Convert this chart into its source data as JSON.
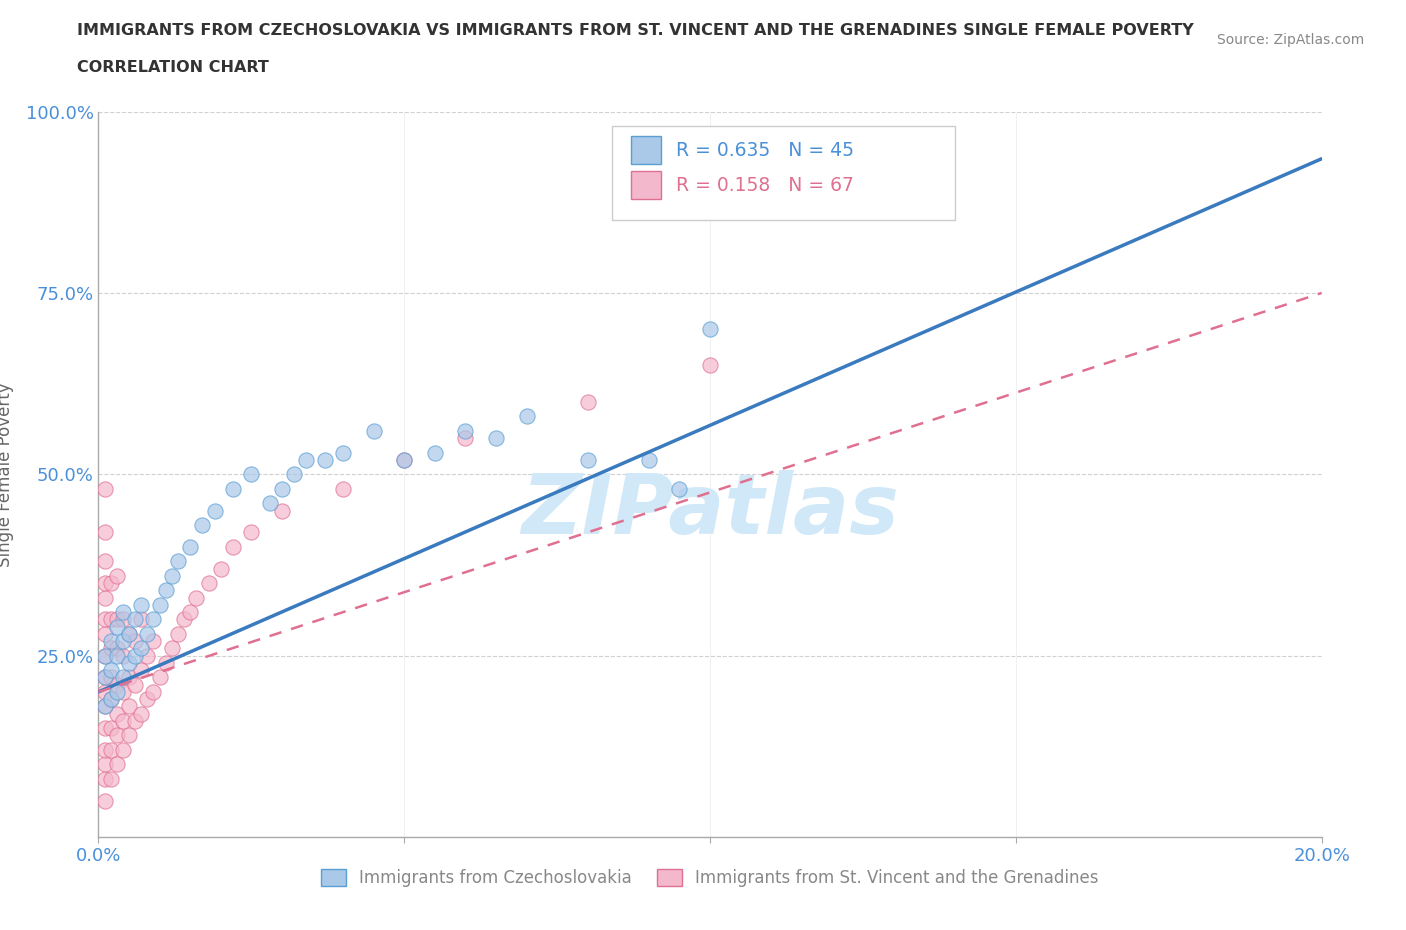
{
  "title_line1": "IMMIGRANTS FROM CZECHOSLOVAKIA VS IMMIGRANTS FROM ST. VINCENT AND THE GRENADINES SINGLE FEMALE POVERTY",
  "title_line2": "CORRELATION CHART",
  "source_text": "Source: ZipAtlas.com",
  "ylabel": "Single Female Poverty",
  "xlim": [
    0.0,
    0.2
  ],
  "ylim": [
    0.0,
    1.0
  ],
  "xticks": [
    0.0,
    0.05,
    0.1,
    0.15,
    0.2
  ],
  "xtick_labels": [
    "0.0%",
    "",
    "",
    "",
    "20.0%"
  ],
  "yticks": [
    0.0,
    0.25,
    0.5,
    0.75,
    1.0
  ],
  "ytick_labels": [
    "",
    "25.0%",
    "50.0%",
    "75.0%",
    "100.0%"
  ],
  "series1_name": "Immigrants from Czechoslovakia",
  "series1_color": "#aac8e8",
  "series1_edge_color": "#5a9fd4",
  "series1_R": 0.635,
  "series1_N": 45,
  "series1_line_color": "#3a7abf",
  "series2_name": "Immigrants from St. Vincent and the Grenadines",
  "series2_color": "#f4b8cc",
  "series2_edge_color": "#e07090",
  "series2_R": 0.158,
  "series2_N": 67,
  "series2_line_color": "#e07090",
  "watermark": "ZIPatlas",
  "watermark_color": "#d0e8f8",
  "background_color": "#ffffff",
  "grid_color": "#cccccc",
  "title_color": "#333333",
  "axis_color": "#aaaaaa",
  "legend_R_color1": "#4a90d9",
  "legend_R_color2": "#e07090",
  "blue_line_x0": 0.0,
  "blue_line_y0": 0.2,
  "blue_line_x1": 0.2,
  "blue_line_y1": 0.935,
  "pink_line_x0": 0.0,
  "pink_line_y0": 0.2,
  "pink_line_x1": 0.2,
  "pink_line_y1": 0.75,
  "series1_x": [
    0.001,
    0.001,
    0.001,
    0.002,
    0.002,
    0.002,
    0.003,
    0.003,
    0.003,
    0.004,
    0.004,
    0.004,
    0.005,
    0.005,
    0.006,
    0.006,
    0.007,
    0.007,
    0.008,
    0.009,
    0.01,
    0.011,
    0.012,
    0.013,
    0.015,
    0.017,
    0.019,
    0.022,
    0.025,
    0.028,
    0.03,
    0.032,
    0.034,
    0.037,
    0.04,
    0.045,
    0.05,
    0.055,
    0.06,
    0.065,
    0.07,
    0.08,
    0.09,
    0.095,
    0.1
  ],
  "series1_y": [
    0.18,
    0.22,
    0.25,
    0.19,
    0.23,
    0.27,
    0.2,
    0.25,
    0.29,
    0.22,
    0.27,
    0.31,
    0.24,
    0.28,
    0.25,
    0.3,
    0.26,
    0.32,
    0.28,
    0.3,
    0.32,
    0.34,
    0.36,
    0.38,
    0.4,
    0.43,
    0.45,
    0.48,
    0.5,
    0.46,
    0.48,
    0.5,
    0.52,
    0.52,
    0.53,
    0.56,
    0.52,
    0.53,
    0.56,
    0.55,
    0.58,
    0.52,
    0.52,
    0.48,
    0.7
  ],
  "series2_x": [
    0.001,
    0.001,
    0.001,
    0.001,
    0.001,
    0.001,
    0.001,
    0.001,
    0.001,
    0.001,
    0.001,
    0.001,
    0.001,
    0.001,
    0.001,
    0.001,
    0.002,
    0.002,
    0.002,
    0.002,
    0.002,
    0.002,
    0.002,
    0.002,
    0.003,
    0.003,
    0.003,
    0.003,
    0.003,
    0.003,
    0.003,
    0.004,
    0.004,
    0.004,
    0.004,
    0.004,
    0.005,
    0.005,
    0.005,
    0.005,
    0.006,
    0.006,
    0.006,
    0.007,
    0.007,
    0.007,
    0.008,
    0.008,
    0.009,
    0.009,
    0.01,
    0.011,
    0.012,
    0.013,
    0.014,
    0.015,
    0.016,
    0.018,
    0.02,
    0.022,
    0.025,
    0.03,
    0.04,
    0.05,
    0.06,
    0.08,
    0.1
  ],
  "series2_y": [
    0.05,
    0.08,
    0.1,
    0.12,
    0.15,
    0.18,
    0.2,
    0.22,
    0.25,
    0.28,
    0.3,
    0.33,
    0.35,
    0.38,
    0.42,
    0.48,
    0.08,
    0.12,
    0.15,
    0.19,
    0.22,
    0.26,
    0.3,
    0.35,
    0.1,
    0.14,
    0.17,
    0.21,
    0.26,
    0.3,
    0.36,
    0.12,
    0.16,
    0.2,
    0.25,
    0.3,
    0.14,
    0.18,
    0.22,
    0.28,
    0.16,
    0.21,
    0.27,
    0.17,
    0.23,
    0.3,
    0.19,
    0.25,
    0.2,
    0.27,
    0.22,
    0.24,
    0.26,
    0.28,
    0.3,
    0.31,
    0.33,
    0.35,
    0.37,
    0.4,
    0.42,
    0.45,
    0.48,
    0.52,
    0.55,
    0.6,
    0.65
  ]
}
